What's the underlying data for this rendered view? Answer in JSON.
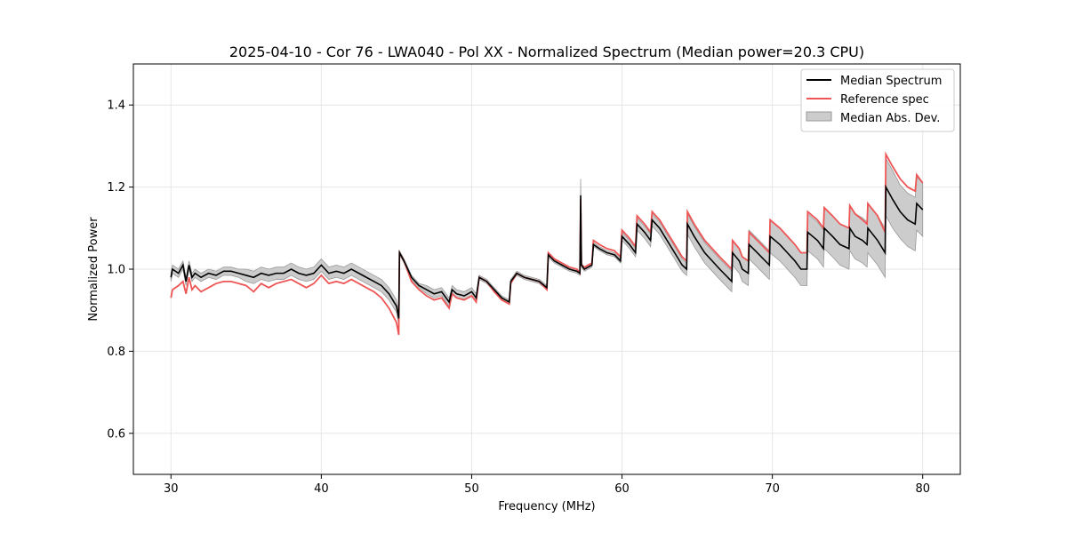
{
  "chart_data": {
    "type": "line",
    "title": "2025-04-10 - Cor 76 - LWA040 - Pol XX - Normalized Spectrum (Median power=20.3 CPU)",
    "xlabel": "Frequency (MHz)",
    "ylabel": "Normalized Power",
    "xlim": [
      27.5,
      82.5
    ],
    "ylim": [
      0.5,
      1.5
    ],
    "xticks": [
      30,
      40,
      50,
      60,
      70,
      80
    ],
    "yticks": [
      0.6,
      0.8,
      1.0,
      1.2,
      1.4
    ],
    "xtick_labels": [
      "30",
      "40",
      "50",
      "60",
      "70",
      "80"
    ],
    "ytick_labels": [
      "0.6",
      "0.8",
      "1.0",
      "1.2",
      "1.4"
    ],
    "grid": true,
    "legend_position": "top-right",
    "legend": {
      "median": "Median Spectrum",
      "reference": "Reference spec",
      "mad": "Median Abs. Dev."
    },
    "colors": {
      "median": "#000000",
      "reference": "#ee5555",
      "mad_fill": "#cccccc",
      "mad_edge": "#999999",
      "grid": "#e6e6e6"
    },
    "series": [
      {
        "name": "Median Spectrum",
        "x": [
          30.0,
          30.1,
          30.5,
          30.8,
          31.0,
          31.2,
          31.4,
          31.6,
          32.0,
          32.5,
          33.0,
          33.5,
          34.0,
          34.5,
          35.0,
          35.5,
          36.0,
          36.5,
          37.0,
          37.5,
          38.0,
          38.5,
          39.0,
          39.5,
          40.0,
          40.5,
          41.0,
          41.5,
          42.0,
          42.5,
          43.0,
          43.5,
          44.0,
          44.5,
          45.0,
          45.15,
          45.2,
          45.5,
          46.0,
          46.5,
          47.0,
          47.5,
          48.0,
          48.5,
          48.7,
          49.0,
          49.5,
          50.0,
          50.3,
          50.5,
          51.0,
          51.5,
          52.0,
          52.5,
          52.6,
          53.0,
          53.5,
          54.0,
          54.5,
          55.0,
          55.1,
          55.5,
          56.0,
          56.5,
          57.0,
          57.2,
          57.25,
          57.3,
          57.5,
          58.0,
          58.1,
          58.5,
          59.0,
          59.5,
          59.9,
          60.0,
          60.5,
          60.9,
          61.0,
          61.5,
          61.9,
          62.0,
          62.5,
          63.0,
          63.5,
          64.0,
          64.3,
          64.35,
          64.8,
          65.5,
          66.5,
          67.3,
          67.35,
          67.8,
          68.0,
          68.4,
          68.45,
          69.0,
          69.8,
          69.85,
          70.5,
          71.0,
          71.5,
          71.9,
          72.3,
          72.35,
          73.0,
          73.4,
          73.45,
          74.0,
          74.5,
          75.1,
          75.15,
          75.5,
          76.0,
          76.3,
          76.35,
          77.0,
          77.5,
          77.55,
          78.0,
          78.5,
          79.0,
          79.5,
          79.6,
          80.0
        ],
        "y": [
          0.98,
          1.0,
          0.99,
          1.01,
          0.97,
          1.01,
          0.98,
          0.99,
          0.98,
          0.99,
          0.985,
          0.995,
          0.995,
          0.99,
          0.985,
          0.98,
          0.99,
          0.985,
          0.99,
          0.99,
          1.0,
          0.99,
          0.985,
          0.99,
          1.01,
          0.99,
          0.995,
          0.99,
          1.0,
          0.99,
          0.98,
          0.97,
          0.96,
          0.94,
          0.91,
          0.88,
          1.04,
          1.02,
          0.98,
          0.96,
          0.95,
          0.94,
          0.945,
          0.92,
          0.95,
          0.94,
          0.935,
          0.945,
          0.93,
          0.98,
          0.97,
          0.95,
          0.93,
          0.92,
          0.97,
          0.99,
          0.98,
          0.975,
          0.97,
          0.955,
          1.035,
          1.02,
          1.01,
          1.0,
          0.995,
          0.99,
          1.18,
          1.01,
          1.0,
          1.01,
          1.06,
          1.05,
          1.04,
          1.035,
          1.02,
          1.08,
          1.06,
          1.04,
          1.11,
          1.09,
          1.07,
          1.12,
          1.1,
          1.07,
          1.04,
          1.01,
          1.0,
          1.11,
          1.08,
          1.04,
          1.0,
          0.97,
          1.04,
          1.02,
          1.0,
          0.99,
          1.06,
          1.04,
          1.01,
          1.08,
          1.06,
          1.04,
          1.02,
          1.0,
          1.0,
          1.09,
          1.07,
          1.05,
          1.1,
          1.08,
          1.06,
          1.05,
          1.1,
          1.08,
          1.07,
          1.06,
          1.1,
          1.07,
          1.04,
          1.2,
          1.17,
          1.14,
          1.12,
          1.11,
          1.16,
          1.145
        ]
      },
      {
        "name": "Reference spec",
        "x": [
          30.0,
          30.1,
          30.5,
          30.8,
          31.0,
          31.2,
          31.4,
          31.6,
          32.0,
          32.5,
          33.0,
          33.5,
          34.0,
          34.5,
          35.0,
          35.5,
          36.0,
          36.5,
          37.0,
          37.5,
          38.0,
          38.5,
          39.0,
          39.5,
          40.0,
          40.5,
          41.0,
          41.5,
          42.0,
          42.5,
          43.0,
          43.5,
          44.0,
          44.5,
          45.0,
          45.15,
          45.2,
          45.5,
          46.0,
          46.5,
          47.0,
          47.5,
          48.0,
          48.5,
          48.7,
          49.0,
          49.5,
          50.0,
          50.3,
          50.5,
          51.0,
          51.5,
          52.0,
          52.5,
          52.6,
          53.0,
          53.5,
          54.0,
          54.5,
          55.0,
          55.1,
          55.5,
          56.0,
          56.5,
          57.0,
          57.2,
          57.25,
          57.3,
          57.5,
          58.0,
          58.1,
          58.5,
          59.0,
          59.5,
          59.9,
          60.0,
          60.5,
          60.9,
          61.0,
          61.5,
          61.9,
          62.0,
          62.5,
          63.0,
          63.5,
          64.0,
          64.3,
          64.35,
          64.8,
          65.5,
          66.5,
          67.3,
          67.35,
          67.8,
          68.0,
          68.4,
          68.45,
          69.0,
          69.8,
          69.85,
          70.5,
          71.0,
          71.5,
          71.9,
          72.3,
          72.35,
          73.0,
          73.4,
          73.45,
          74.0,
          74.5,
          75.1,
          75.15,
          75.5,
          76.0,
          76.3,
          76.35,
          77.0,
          77.5,
          77.55,
          78.0,
          78.5,
          79.0,
          79.5,
          79.6,
          80.0
        ],
        "y": [
          0.93,
          0.95,
          0.96,
          0.97,
          0.94,
          0.98,
          0.95,
          0.96,
          0.945,
          0.955,
          0.965,
          0.97,
          0.97,
          0.965,
          0.96,
          0.945,
          0.965,
          0.955,
          0.965,
          0.97,
          0.975,
          0.965,
          0.955,
          0.965,
          0.985,
          0.965,
          0.97,
          0.965,
          0.975,
          0.965,
          0.955,
          0.945,
          0.93,
          0.905,
          0.87,
          0.84,
          1.04,
          1.02,
          0.97,
          0.95,
          0.935,
          0.925,
          0.93,
          0.905,
          0.94,
          0.93,
          0.925,
          0.935,
          0.92,
          0.98,
          0.97,
          0.945,
          0.925,
          0.915,
          0.965,
          0.99,
          0.98,
          0.975,
          0.97,
          0.95,
          1.04,
          1.025,
          1.015,
          1.005,
          1.0,
          0.99,
          1.17,
          1.01,
          1.005,
          1.015,
          1.07,
          1.06,
          1.05,
          1.045,
          1.03,
          1.095,
          1.075,
          1.055,
          1.13,
          1.11,
          1.09,
          1.14,
          1.12,
          1.09,
          1.06,
          1.03,
          1.02,
          1.14,
          1.11,
          1.07,
          1.03,
          1.0,
          1.07,
          1.05,
          1.03,
          1.02,
          1.09,
          1.07,
          1.04,
          1.12,
          1.1,
          1.08,
          1.06,
          1.04,
          1.04,
          1.14,
          1.12,
          1.1,
          1.15,
          1.13,
          1.11,
          1.1,
          1.155,
          1.135,
          1.12,
          1.11,
          1.16,
          1.13,
          1.09,
          1.28,
          1.25,
          1.22,
          1.2,
          1.19,
          1.23,
          1.21
        ]
      },
      {
        "name": "Median Abs. Dev.",
        "x": [
          30.0,
          30.1,
          30.5,
          30.8,
          31.0,
          31.2,
          31.4,
          31.6,
          32.0,
          32.5,
          33.0,
          33.5,
          34.0,
          34.5,
          35.0,
          35.5,
          36.0,
          36.5,
          37.0,
          37.5,
          38.0,
          38.5,
          39.0,
          39.5,
          40.0,
          40.5,
          41.0,
          41.5,
          42.0,
          42.5,
          43.0,
          43.5,
          44.0,
          44.5,
          45.0,
          45.15,
          45.2,
          45.5,
          46.0,
          46.5,
          47.0,
          47.5,
          48.0,
          48.5,
          48.7,
          49.0,
          49.5,
          50.0,
          50.3,
          50.5,
          51.0,
          51.5,
          52.0,
          52.5,
          52.6,
          53.0,
          53.5,
          54.0,
          54.5,
          55.0,
          55.1,
          55.5,
          56.0,
          56.5,
          57.0,
          57.2,
          57.25,
          57.3,
          57.5,
          58.0,
          58.1,
          58.5,
          59.0,
          59.5,
          59.9,
          60.0,
          60.5,
          60.9,
          61.0,
          61.5,
          61.9,
          62.0,
          62.5,
          63.0,
          63.5,
          64.0,
          64.3,
          64.35,
          64.8,
          65.5,
          66.5,
          67.3,
          67.35,
          67.8,
          68.0,
          68.4,
          68.45,
          69.0,
          69.8,
          69.85,
          70.5,
          71.0,
          71.5,
          71.9,
          72.3,
          72.35,
          73.0,
          73.4,
          73.45,
          74.0,
          74.5,
          75.1,
          75.15,
          75.5,
          76.0,
          76.3,
          76.35,
          77.0,
          77.5,
          77.55,
          78.0,
          78.5,
          79.0,
          79.5,
          79.6,
          80.0
        ],
        "lower": [
          0.97,
          0.99,
          0.98,
          1.0,
          0.96,
          1.0,
          0.97,
          0.98,
          0.97,
          0.98,
          0.975,
          0.985,
          0.985,
          0.98,
          0.97,
          0.965,
          0.975,
          0.97,
          0.975,
          0.975,
          0.985,
          0.975,
          0.97,
          0.975,
          0.995,
          0.975,
          0.98,
          0.975,
          0.985,
          0.975,
          0.965,
          0.955,
          0.945,
          0.925,
          0.895,
          0.865,
          1.035,
          1.015,
          0.975,
          0.955,
          0.94,
          0.93,
          0.935,
          0.91,
          0.94,
          0.93,
          0.925,
          0.935,
          0.92,
          0.975,
          0.965,
          0.945,
          0.925,
          0.915,
          0.965,
          0.985,
          0.975,
          0.97,
          0.965,
          0.95,
          1.03,
          1.015,
          1.005,
          0.995,
          0.99,
          0.985,
          1.175,
          1.005,
          0.995,
          1.005,
          1.055,
          1.045,
          1.035,
          1.03,
          1.015,
          1.07,
          1.05,
          1.03,
          1.095,
          1.075,
          1.055,
          1.105,
          1.085,
          1.055,
          1.025,
          0.995,
          0.985,
          1.085,
          1.055,
          1.015,
          0.975,
          0.945,
          1.01,
          0.99,
          0.97,
          0.96,
          1.025,
          1.005,
          0.975,
          1.04,
          1.02,
          1.0,
          0.98,
          0.96,
          0.96,
          1.045,
          1.025,
          1.005,
          1.05,
          1.03,
          1.01,
          1.0,
          1.045,
          1.025,
          1.015,
          1.005,
          1.04,
          1.01,
          0.98,
          1.13,
          1.1,
          1.075,
          1.055,
          1.045,
          1.095,
          1.08
        ],
        "upper": [
          0.99,
          1.01,
          1.0,
          1.02,
          0.98,
          1.02,
          0.99,
          1.0,
          0.99,
          1.0,
          0.995,
          1.005,
          1.005,
          1.0,
          1.0,
          0.995,
          1.005,
          1.0,
          1.005,
          1.005,
          1.015,
          1.005,
          1.0,
          1.005,
          1.025,
          1.005,
          1.01,
          1.005,
          1.015,
          1.005,
          0.995,
          0.985,
          0.975,
          0.955,
          0.925,
          0.895,
          1.045,
          1.025,
          0.985,
          0.965,
          0.96,
          0.95,
          0.955,
          0.93,
          0.96,
          0.95,
          0.945,
          0.955,
          0.94,
          0.985,
          0.975,
          0.955,
          0.935,
          0.925,
          0.975,
          0.995,
          0.985,
          0.98,
          0.975,
          0.96,
          1.04,
          1.025,
          1.015,
          1.005,
          1.0,
          0.995,
          1.22,
          1.015,
          1.005,
          1.015,
          1.065,
          1.055,
          1.045,
          1.04,
          1.025,
          1.09,
          1.07,
          1.05,
          1.125,
          1.105,
          1.085,
          1.135,
          1.115,
          1.085,
          1.055,
          1.025,
          1.015,
          1.135,
          1.105,
          1.065,
          1.025,
          0.995,
          1.07,
          1.05,
          1.03,
          1.02,
          1.095,
          1.075,
          1.045,
          1.12,
          1.1,
          1.08,
          1.06,
          1.04,
          1.04,
          1.135,
          1.115,
          1.095,
          1.15,
          1.13,
          1.11,
          1.1,
          1.155,
          1.135,
          1.125,
          1.115,
          1.16,
          1.13,
          1.1,
          1.27,
          1.24,
          1.205,
          1.185,
          1.175,
          1.225,
          1.21
        ]
      }
    ]
  }
}
